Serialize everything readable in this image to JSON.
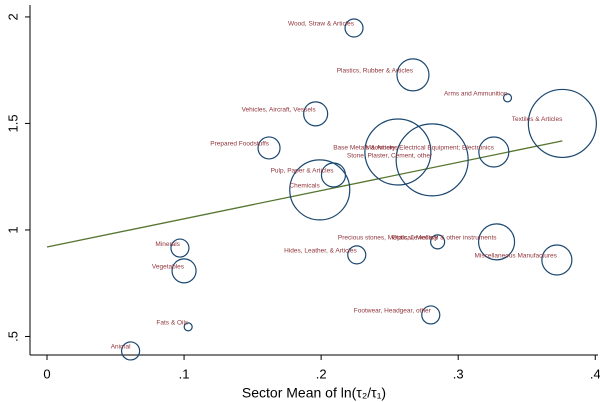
{
  "chart_data": {
    "type": "bubble",
    "xlabel": "Sector Mean of ln(τ₂/τ₁)",
    "xlim": [
      -0.0124,
      0.402
    ],
    "ylim": [
      0.413,
      2.056
    ],
    "xticks": [
      {
        "value": 0,
        "label": "0"
      },
      {
        "value": 0.1,
        "label": ".1"
      },
      {
        "value": 0.2,
        "label": ".2"
      },
      {
        "value": 0.3,
        "label": ".3"
      },
      {
        "value": 0.4,
        "label": ".4"
      }
    ],
    "yticks": [
      {
        "value": 0.5,
        "label": ".5"
      },
      1,
      1.5,
      2
    ],
    "points": {
      "color": "#1a476f",
      "label_color": "#90353b",
      "labels": [
        "Wood, Straw & Articles",
        "Plastics, Rubber & Articles",
        "Arms and Ammunition",
        "Textiles & Articles",
        "Vehicles, Aircraft, Vessels",
        "Prepared Foodstuffs",
        "Base Metals & Articles",
        "Stone, Plaster, Cement, other",
        "Machinery; Electrical Equipment; Electronics",
        "Pulp, Paper & Articles",
        "Chemicals",
        "Precious stones, Metals, Jewellery",
        "Optical, Medical & other instruments",
        "Miscellaneous Manufactures",
        "Minerals",
        "Hides, Leather, & Articles",
        "Vegetables",
        "Footwear, Headgear, other",
        "Fats & Oils",
        "Animal"
      ],
      "x": [
        0.224,
        0.267,
        0.336,
        0.376,
        0.196,
        0.162,
        0.256,
        0.281,
        0.326,
        0.209,
        0.199,
        0.285,
        0.328,
        0.372,
        0.097,
        0.226,
        0.1,
        0.28,
        0.103,
        0.061
      ],
      "y": [
        1.948,
        1.728,
        1.62,
        1.5,
        1.545,
        1.385,
        1.366,
        1.329,
        1.366,
        1.258,
        1.188,
        0.944,
        0.944,
        0.859,
        0.915,
        0.883,
        0.808,
        0.601,
        0.545,
        0.432
      ],
      "size": [
        9,
        16,
        4,
        34,
        12,
        11,
        33,
        36,
        15,
        12,
        30,
        7,
        18,
        15,
        9,
        9,
        12,
        9,
        4,
        9
      ]
    },
    "fit": {
      "color": "#55752f",
      "x": [
        0,
        0.376
      ],
      "y": [
        0.92,
        1.418
      ]
    }
  }
}
